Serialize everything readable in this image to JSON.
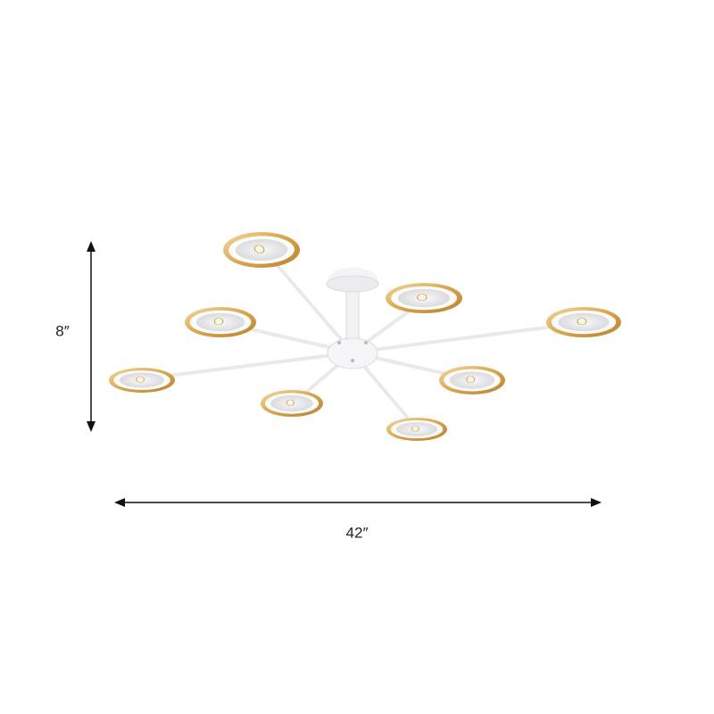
{
  "dimensions": {
    "height": "8″",
    "width": "42″"
  }
}
